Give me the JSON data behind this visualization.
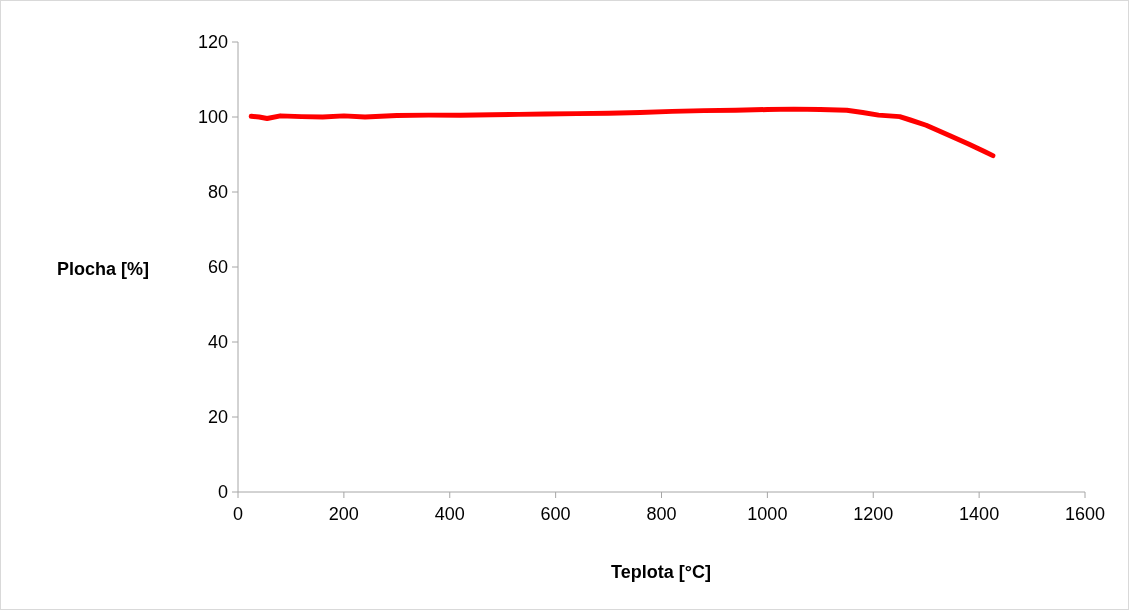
{
  "chart_data": {
    "type": "line",
    "xlabel": "Teplota [°C]",
    "ylabel": "Plocha [%]",
    "x": [
      25,
      40,
      55,
      80,
      120,
      160,
      200,
      240,
      300,
      360,
      420,
      480,
      530,
      580,
      640,
      700,
      760,
      820,
      880,
      940,
      1000,
      1050,
      1100,
      1150,
      1180,
      1210,
      1250,
      1270,
      1300,
      1345,
      1380,
      1410,
      1426
    ],
    "series": [
      {
        "color": "#ff0000",
        "values": [
          100.2,
          100,
          99.6,
          100.3,
          100.1,
          100,
          100.3,
          100,
          100.4,
          100.5,
          100.5,
          100.6,
          100.7,
          100.8,
          100.9,
          101,
          101.2,
          101.5,
          101.7,
          101.8,
          102,
          102.1,
          102,
          101.8,
          101.2,
          100.5,
          100.1,
          99.2,
          97.8,
          95,
          92.8,
          90.8,
          89.7
        ]
      }
    ],
    "xlim": [
      0,
      1600
    ],
    "xticks": [
      0,
      200,
      400,
      600,
      800,
      1000,
      1200,
      1400,
      1600
    ],
    "ylim": [
      0,
      120
    ],
    "yticks": [
      0,
      20,
      40,
      60,
      80,
      100,
      120
    ],
    "grid": false,
    "marker": "none",
    "line_style": "solid"
  }
}
